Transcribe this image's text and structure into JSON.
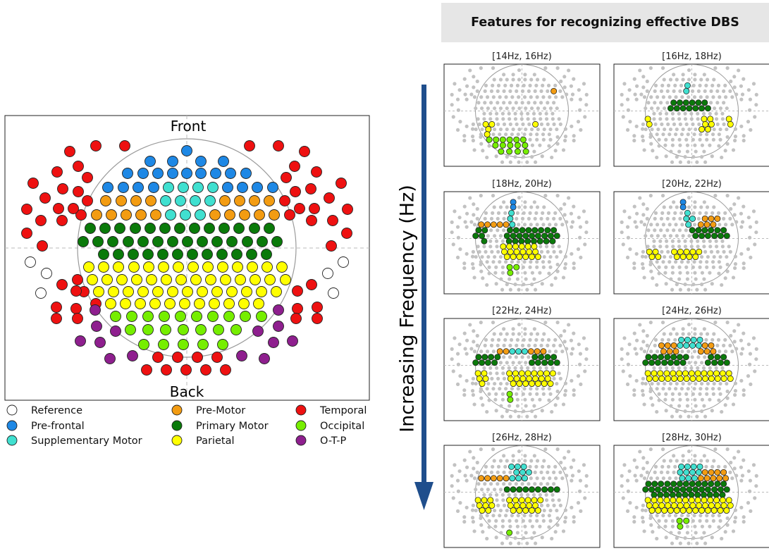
{
  "figure_title": "Features for recognizing effective DBS",
  "axis_label": "Increasing Frequency (Hz)",
  "head_map": {
    "front_label": "Front",
    "back_label": "Back"
  },
  "legend": [
    {
      "key": "reference",
      "label": "Reference",
      "color": "#ffffff"
    },
    {
      "key": "prefrontal",
      "label": "Pre-frontal",
      "color": "#1e88e5"
    },
    {
      "key": "sma",
      "label": "Supplementary Motor",
      "color": "#40e0d0"
    },
    {
      "key": "premotor",
      "label": "Pre-Motor",
      "color": "#f39c12"
    },
    {
      "key": "motor",
      "label": "Primary Motor",
      "color": "#0a7a0a"
    },
    {
      "key": "parietal",
      "label": "Parietal",
      "color": "#ffff00"
    },
    {
      "key": "temporal",
      "label": "Temporal",
      "color": "#ee1111"
    },
    {
      "key": "occipital",
      "label": "Occipital",
      "color": "#76ee00"
    },
    {
      "key": "otp",
      "label": "O-T-P",
      "color": "#8e1f8e"
    }
  ],
  "panels": [
    {
      "label": "[14Hz, 16Hz)"
    },
    {
      "label": "[16Hz, 18Hz)"
    },
    {
      "label": "[18Hz, 20Hz)"
    },
    {
      "label": "[20Hz, 22Hz)"
    },
    {
      "label": "[22Hz, 24Hz)"
    },
    {
      "label": "[24Hz, 26Hz)"
    },
    {
      "label": "[26Hz, 28Hz)"
    },
    {
      "label": "[28Hz, 30Hz)"
    }
  ],
  "colors": {
    "arrow": "#1f4e8c",
    "inactive_electrode": "#c2c2c2",
    "panel_bg": "#e6e6e6"
  }
}
